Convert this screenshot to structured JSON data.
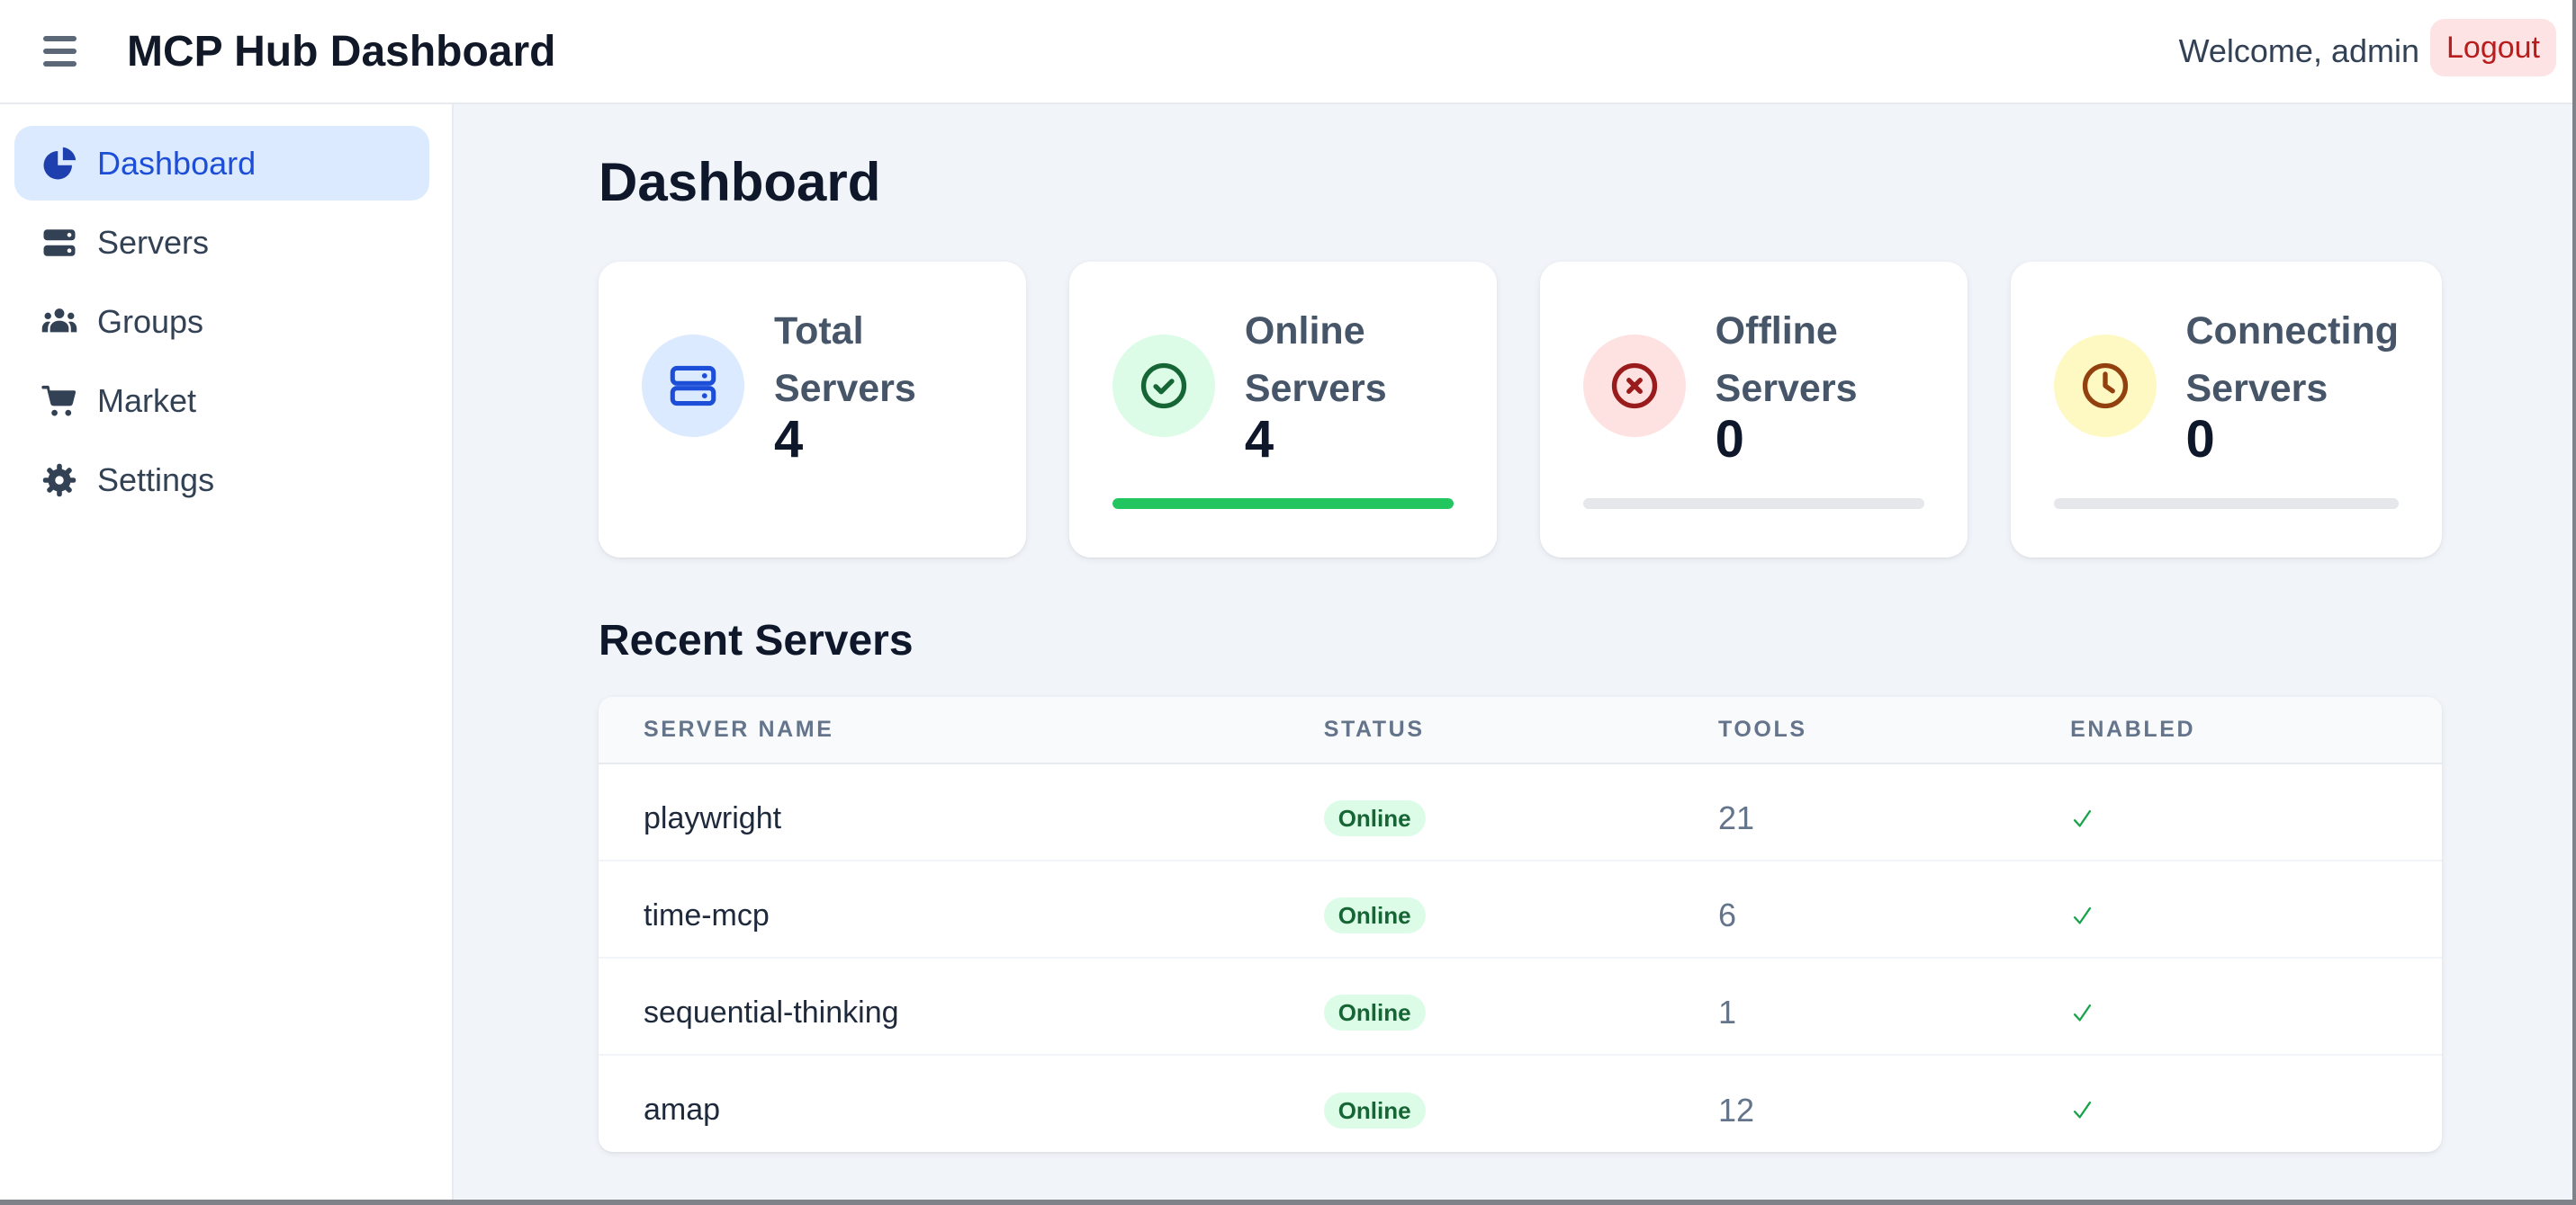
{
  "header": {
    "title": "MCP Hub Dashboard",
    "welcome": "Welcome, admin",
    "logout_label": "Logout"
  },
  "sidebar": {
    "items": [
      {
        "label": "Dashboard",
        "icon": "pie-chart-icon",
        "active": true
      },
      {
        "label": "Servers",
        "icon": "server-icon",
        "active": false
      },
      {
        "label": "Groups",
        "icon": "users-icon",
        "active": false
      },
      {
        "label": "Market",
        "icon": "cart-icon",
        "active": false
      },
      {
        "label": "Settings",
        "icon": "gear-icon",
        "active": false
      }
    ]
  },
  "main": {
    "page_title": "Dashboard",
    "stats": [
      {
        "label": "Total Servers",
        "value": "4",
        "icon": "server-icon",
        "icon_color": "#1d4ed8",
        "icon_bg": "#dbeafe",
        "has_bar": false,
        "progress": 0
      },
      {
        "label": "Online Servers",
        "value": "4",
        "icon": "circle-check-icon",
        "icon_color": "#166534",
        "icon_bg": "#dcfce7",
        "has_bar": true,
        "progress": 100
      },
      {
        "label": "Offline Servers",
        "value": "0",
        "icon": "circle-x-icon",
        "icon_color": "#991b1b",
        "icon_bg": "#fee2e2",
        "has_bar": true,
        "progress": 0
      },
      {
        "label": "Connecting Servers",
        "value": "0",
        "icon": "clock-icon",
        "icon_color": "#92400e",
        "icon_bg": "#fef9c3",
        "has_bar": true,
        "progress": 0
      }
    ],
    "recent": {
      "title": "Recent Servers",
      "columns": [
        "SERVER NAME",
        "STATUS",
        "TOOLS",
        "ENABLED"
      ],
      "rows": [
        {
          "name": "playwright",
          "status": "Online",
          "tools": "21",
          "enabled": true
        },
        {
          "name": "time-mcp",
          "status": "Online",
          "tools": "6",
          "enabled": true
        },
        {
          "name": "sequential-thinking",
          "status": "Online",
          "tools": "1",
          "enabled": true
        },
        {
          "name": "amap",
          "status": "Online",
          "tools": "12",
          "enabled": true
        }
      ]
    }
  },
  "colors": {
    "accent_blue": "#1d4ed8",
    "active_item_bg": "#dbeafe",
    "online_green": "#22c55e",
    "badge_text": "#15803d",
    "badge_bg": "#dcfce7",
    "logout_text": "#b91c1c",
    "logout_bg": "#fde3e3",
    "main_bg": "#f1f5f9",
    "check_green": "#16a34a"
  }
}
